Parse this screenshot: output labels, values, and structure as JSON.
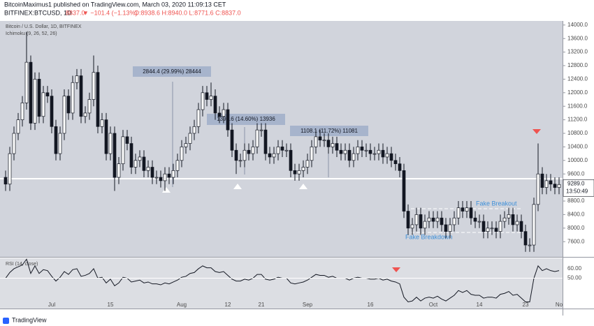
{
  "header": {
    "publisher": "BitcoinMaximus1 published on TradingView.com, March 03, 2020 11:09:13 CET",
    "symbol": "BITFINEX:BTCUSD, 1D",
    "last": "8837.0",
    "change": "▼ −101.4 (−1.13%)",
    "ohlc": "O:8938.6 H:8940.0 L:8771.6 C:8837.0"
  },
  "footer": "TradingView",
  "chart_data": {
    "type": "candlestick",
    "title": "Bitcoin / U.S. Dollar, 1D, BITFINEX",
    "indicator": "Ichimoku (9, 26, 52, 26)",
    "categories": [
      null,
      null,
      null,
      null,
      null,
      null,
      null,
      null,
      null,
      null,
      null,
      "Jul",
      null,
      null,
      null,
      null,
      null,
      null,
      null,
      null,
      null,
      null,
      null,
      null,
      null,
      "15",
      null,
      null,
      null,
      null,
      null,
      null,
      null,
      null,
      null,
      null,
      null,
      null,
      null,
      null,
      null,
      null,
      "Aug",
      null,
      null,
      null,
      null,
      null,
      null,
      null,
      null,
      null,
      null,
      "12",
      null,
      null,
      null,
      null,
      null,
      null,
      null,
      "21",
      null,
      null,
      null,
      null,
      null,
      null,
      null,
      null,
      null,
      null,
      "Sep",
      null,
      null,
      null,
      null,
      null,
      null,
      null,
      null,
      null,
      null,
      null,
      null,
      null,
      null,
      "16",
      null,
      null,
      null,
      null,
      null,
      null,
      null,
      null,
      null,
      null,
      null,
      null,
      null,
      null,
      "Oct",
      null,
      null,
      null,
      null,
      null,
      null,
      null,
      null,
      null,
      null,
      "14",
      null,
      null,
      null,
      null,
      null,
      null,
      null,
      null,
      null,
      null,
      "23",
      null,
      null,
      null,
      null,
      null,
      null,
      null,
      "No"
    ],
    "open": [
      9500,
      9300,
      10200,
      10800,
      11200,
      11700,
      12900,
      11100,
      12400,
      11300,
      12000,
      11900,
      11000,
      10200,
      10800,
      11900,
      11400,
      12300,
      12500,
      11300,
      11400,
      11800,
      12600,
      11000,
      11200,
      10200,
      10800,
      9500,
      9900,
      10700,
      10500,
      9800,
      10000,
      10100,
      9700,
      9800,
      9500,
      9500,
      9400,
      9600,
      9500,
      9700,
      10000,
      10400,
      10500,
      10800,
      11000,
      11500,
      12000,
      11800,
      11900,
      11400,
      11300,
      11500,
      10900,
      10300,
      10000,
      10000,
      10300,
      10200,
      10400,
      10900,
      10900,
      10200,
      10100,
      10200,
      10400,
      10300,
      10300,
      9700,
      9600,
      9700,
      9800,
      10000,
      10400,
      10700,
      10600,
      10600,
      10400,
      10500,
      10300,
      10200,
      10300,
      10000,
      10200,
      10400,
      10300,
      10300,
      10200,
      10200,
      10300,
      10100,
      10200,
      10000,
      9900,
      9700,
      8500,
      8000,
      8100,
      8400,
      8000,
      8200,
      8300,
      8200,
      8300,
      8100,
      7900,
      8100,
      8300,
      8600,
      8500,
      8600,
      8300,
      8200,
      8200,
      7900,
      8000,
      8000,
      7900,
      8200,
      8300,
      8400,
      8100,
      8200,
      7900,
      7500,
      7500,
      8700,
      9600,
      9200,
      9400,
      9300,
      9200
    ],
    "high": [
      9700,
      10400,
      11000,
      11400,
      11900,
      13800,
      13100,
      12600,
      12600,
      12200,
      12200,
      12100,
      11200,
      11000,
      12100,
      12100,
      12500,
      12700,
      12700,
      11600,
      12000,
      13100,
      12800,
      11400,
      11400,
      11000,
      11000,
      10100,
      10900,
      10900,
      10700,
      10200,
      10300,
      10300,
      10000,
      10000,
      9700,
      9700,
      9800,
      9800,
      9900,
      10200,
      10600,
      10700,
      11000,
      11200,
      11700,
      12200,
      12200,
      12300,
      12100,
      11600,
      11700,
      11700,
      11100,
      10500,
      10200,
      10500,
      10500,
      10600,
      11100,
      11100,
      11100,
      10400,
      10400,
      10600,
      10600,
      10500,
      10500,
      9900,
      9900,
      10000,
      10200,
      10600,
      10900,
      10900,
      10800,
      10800,
      10700,
      10700,
      10500,
      10500,
      10500,
      10400,
      10600,
      10600,
      10500,
      10500,
      10400,
      10500,
      10500,
      10400,
      10400,
      10200,
      10100,
      9900,
      8700,
      8300,
      8600,
      8600,
      8400,
      8500,
      8500,
      8500,
      8500,
      8300,
      8300,
      8500,
      8800,
      8800,
      8800,
      8800,
      8500,
      8400,
      8400,
      8200,
      8200,
      8200,
      8400,
      8500,
      8600,
      8600,
      8400,
      8400,
      8100,
      7700,
      8900,
      10500,
      9800,
      9600,
      9600,
      9500,
      9500
    ],
    "low": [
      9100,
      9100,
      10000,
      10600,
      11000,
      11500,
      10900,
      10900,
      11100,
      11100,
      11700,
      10800,
      10000,
      10000,
      10600,
      11200,
      11200,
      12100,
      11100,
      11100,
      11200,
      11600,
      10800,
      10800,
      10000,
      10000,
      9100,
      9300,
      9700,
      10300,
      9600,
      9600,
      9800,
      9500,
      9500,
      9300,
      9300,
      9200,
      9100,
      9300,
      9300,
      9500,
      9800,
      10200,
      10300,
      10600,
      10800,
      11300,
      11600,
      11600,
      11200,
      11100,
      11100,
      10700,
      10100,
      9600,
      9800,
      9800,
      10000,
      10000,
      10200,
      10700,
      10000,
      9900,
      9900,
      10000,
      10100,
      10100,
      9500,
      9400,
      9400,
      9500,
      9600,
      9800,
      10200,
      10400,
      10400,
      10200,
      10200,
      10100,
      10000,
      10000,
      9800,
      9800,
      10000,
      10100,
      10100,
      10000,
      10000,
      10000,
      9900,
      9900,
      9800,
      9700,
      9500,
      8300,
      7800,
      7800,
      7900,
      7800,
      7800,
      8000,
      8000,
      8000,
      7900,
      7700,
      7700,
      7900,
      8100,
      8300,
      8300,
      8100,
      8000,
      8000,
      7700,
      7700,
      7800,
      7700,
      7700,
      8000,
      8100,
      7900,
      7900,
      7700,
      7300,
      7300,
      7300,
      8500,
      9000,
      9000,
      9100,
      9000,
      9000
    ],
    "close": [
      9300,
      10200,
      10800,
      11200,
      11700,
      12900,
      11100,
      12400,
      11300,
      12000,
      11900,
      11000,
      10200,
      10800,
      11900,
      11400,
      12300,
      12500,
      11300,
      11400,
      11800,
      12600,
      11000,
      11200,
      10200,
      10800,
      9500,
      9900,
      10700,
      10500,
      9800,
      10000,
      10100,
      9700,
      9800,
      9500,
      9500,
      9400,
      9600,
      9500,
      9700,
      10000,
      10400,
      10500,
      10800,
      11000,
      11500,
      12000,
      11800,
      11900,
      11400,
      11300,
      11500,
      10900,
      10300,
      10000,
      10000,
      10300,
      10200,
      10400,
      10900,
      10900,
      10200,
      10100,
      10200,
      10400,
      10300,
      10300,
      9700,
      9600,
      9700,
      9800,
      10000,
      10400,
      10700,
      10600,
      10600,
      10400,
      10500,
      10300,
      10200,
      10300,
      10000,
      10200,
      10400,
      10300,
      10300,
      10200,
      10200,
      10300,
      10100,
      10200,
      10000,
      9900,
      9700,
      8500,
      8000,
      8100,
      8400,
      8000,
      8200,
      8300,
      8200,
      8300,
      8100,
      7900,
      8100,
      8300,
      8600,
      8500,
      8600,
      8300,
      8200,
      8200,
      7900,
      8000,
      8000,
      7900,
      8200,
      8300,
      8400,
      8100,
      8200,
      7900,
      7500,
      7500,
      8700,
      9600,
      9200,
      9400,
      9300,
      9200,
      9289
    ],
    "up_color": "#ffffff",
    "down_color": "#131722",
    "last_label": "9289.0",
    "countdown": "13:50:49",
    "ylim": [
      7150,
      14120
    ],
    "yticks": [
      {
        "value": 7600,
        "label": "7600.0"
      },
      {
        "value": 8000,
        "label": "8000.0"
      },
      {
        "value": 8400,
        "label": "8400.0"
      },
      {
        "value": 8800,
        "label": "8800.0"
      },
      {
        "value": 9200,
        "label": "9200.0"
      },
      {
        "value": 9600,
        "label": "9600.0"
      },
      {
        "value": 10000,
        "label": "10000.0"
      },
      {
        "value": 10400,
        "label": "10400.0"
      },
      {
        "value": 10800,
        "label": "10800.0"
      },
      {
        "value": 11200,
        "label": "11200.0"
      },
      {
        "value": 11600,
        "label": "11600.0"
      },
      {
        "value": 12000,
        "label": "12000.0"
      },
      {
        "value": 12400,
        "label": "12400.0"
      },
      {
        "value": 12800,
        "label": "12800.0"
      },
      {
        "value": 13200,
        "label": "13200.0"
      },
      {
        "value": 13600,
        "label": "13600.0"
      },
      {
        "value": 14000,
        "label": "14000.0"
      }
    ],
    "annotations": [
      "2844.4 (29.99%) 28444",
      "1393.6 (14.60%) 13936",
      "1108.1 (11.72%) 11081",
      "Fake Breakout",
      "Fake Breakdown"
    ],
    "rsi": {
      "name": "RSI (14, close)",
      "color": "#131722",
      "ylim": [
        18,
        71
      ],
      "yticks": [
        {
          "value": 60,
          "label": "60.00"
        },
        {
          "value": 50,
          "label": "50.00"
        }
      ],
      "values": [
        50,
        56,
        60,
        62,
        64,
        70,
        55,
        63,
        55,
        59,
        58,
        52,
        47,
        51,
        57,
        54,
        59,
        60,
        52,
        53,
        55,
        60,
        50,
        51,
        45,
        49,
        42,
        45,
        51,
        50,
        46,
        47,
        48,
        45,
        46,
        44,
        44,
        43,
        45,
        44,
        46,
        48,
        51,
        52,
        55,
        56,
        60,
        63,
        61,
        61,
        57,
        56,
        57,
        53,
        49,
        47,
        47,
        49,
        48,
        50,
        54,
        54,
        49,
        48,
        49,
        51,
        50,
        50,
        45,
        44,
        45,
        46,
        48,
        51,
        54,
        53,
        53,
        51,
        52,
        50,
        50,
        50,
        48,
        50,
        51,
        50,
        50,
        49,
        49,
        50,
        48,
        49,
        47,
        46,
        44,
        30,
        25,
        26,
        30,
        26,
        29,
        30,
        29,
        31,
        28,
        26,
        29,
        32,
        37,
        35,
        37,
        33,
        32,
        32,
        29,
        30,
        30,
        29,
        33,
        34,
        36,
        32,
        33,
        29,
        25,
        25,
        50,
        63,
        58,
        60,
        58,
        57,
        58
      ]
    }
  }
}
